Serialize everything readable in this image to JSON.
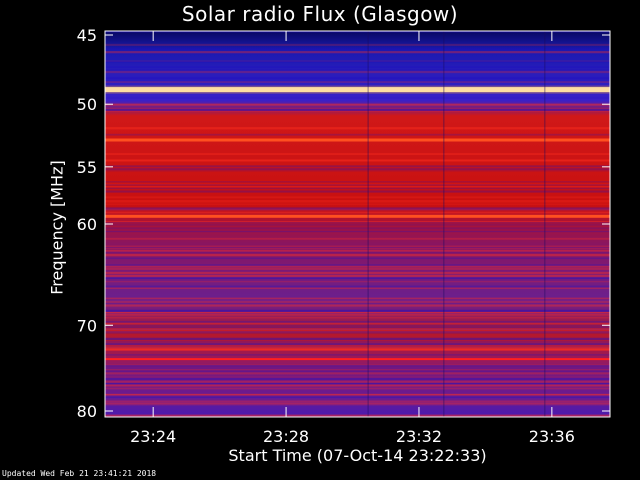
{
  "chart_data": {
    "type": "heatmap",
    "title": "Solar radio Flux (Glasgow)",
    "xlabel": "Start Time (07-Oct-14 23:22:33)",
    "ylabel": "Frequency [MHz]",
    "x_start": "23:22:33",
    "x_end": "23:37:45",
    "x_tick_labels": [
      "23:24",
      "23:28",
      "23:32",
      "23:36"
    ],
    "y_tick_labels": [
      "45",
      "50",
      "55",
      "60",
      "70",
      "80"
    ],
    "ylim": [
      45,
      80
    ],
    "emission_bands_mhz": [
      {
        "freq": 48.9,
        "level": "very high"
      },
      {
        "freq": 52.8,
        "level": "high"
      },
      {
        "freq": 59.3,
        "level": "high"
      },
      {
        "freq": 73.7,
        "level": "medium"
      }
    ],
    "colors": {
      "low": "#1010a0",
      "mid": "#c01010",
      "high": "#ffffc0"
    }
  },
  "footer": "Updated Wed Feb 21 23:41:21 2018"
}
